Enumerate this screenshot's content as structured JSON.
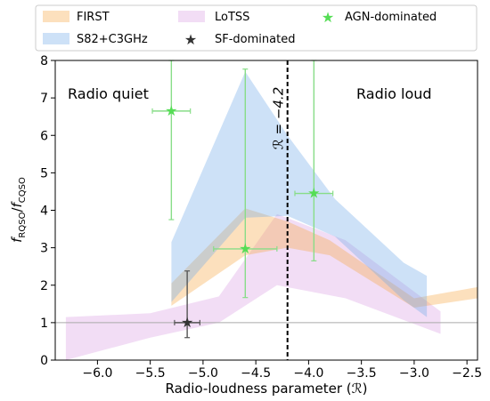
{
  "chart_data": {
    "type": "area",
    "title": "",
    "xlabel": "Radio-loudness parameter (ℛ)",
    "ylabel": "f RQSO / f CQSO",
    "ylabel_main": "f",
    "ylabel_sub1": "RQSO",
    "ylabel_sep": "/",
    "ylabel_main2": "f",
    "ylabel_sub2": "CQSO",
    "xlim": [
      -6.4,
      -2.4
    ],
    "ylim": [
      0,
      8
    ],
    "xticks": [
      -6.0,
      -5.5,
      -5.0,
      -4.5,
      -4.0,
      -3.5,
      -3.0,
      -2.5
    ],
    "xtick_labels": [
      "−6.0",
      "−5.5",
      "−5.0",
      "−4.5",
      "−4.0",
      "−3.5",
      "−3.0",
      "−2.5"
    ],
    "yticks": [
      0,
      1,
      2,
      3,
      4,
      5,
      6,
      7,
      8
    ],
    "ytick_labels": [
      "0",
      "1",
      "2",
      "3",
      "4",
      "5",
      "6",
      "7",
      "8"
    ],
    "grid": false,
    "legend_position": "top, above the axes",
    "reference_line_y": 1,
    "threshold": {
      "x": -4.2,
      "label": "ℛ = −4.2"
    },
    "region_labels": {
      "left": "Radio quiet",
      "right": "Radio loud"
    },
    "series": [
      {
        "name": "FIRST",
        "kind": "band",
        "color": "#f5a542",
        "x": [
          -5.3,
          -4.6,
          -4.2,
          -3.8,
          -3.0,
          -2.4
        ],
        "lower": [
          1.45,
          2.8,
          3.0,
          2.8,
          1.4,
          1.65
        ],
        "upper": [
          2.05,
          4.05,
          3.7,
          3.2,
          1.65,
          1.95
        ]
      },
      {
        "name": "S82+C3GHz",
        "kind": "band",
        "color": "#6fa8e8",
        "x": [
          -5.3,
          -4.6,
          -4.2,
          -3.75,
          -3.1,
          -2.88
        ],
        "lower": [
          1.55,
          3.8,
          3.85,
          3.3,
          1.6,
          1.15
        ],
        "upper": [
          3.15,
          7.7,
          6.0,
          4.3,
          2.6,
          2.25
        ]
      },
      {
        "name": "LoTSS",
        "kind": "band",
        "color": "#e2b4e8",
        "x": [
          -6.3,
          -5.5,
          -4.85,
          -4.3,
          -3.65,
          -2.75
        ],
        "lower": [
          0.0,
          0.6,
          1.0,
          2.0,
          1.65,
          0.7
        ],
        "upper": [
          1.15,
          1.25,
          1.7,
          3.9,
          3.2,
          1.3
        ]
      },
      {
        "name": "SF-dominated",
        "kind": "points",
        "color": "#333333",
        "marker": "star",
        "points": [
          {
            "x": -5.15,
            "y": 1.0,
            "xerr": 0.12,
            "yerr_low": 0.4,
            "yerr_high": 1.38
          }
        ]
      },
      {
        "name": "AGN-dominated",
        "kind": "points",
        "color": "#55dd55",
        "marker": "star",
        "points": [
          {
            "x": -5.3,
            "y": 6.65,
            "xerr": 0.18,
            "yerr_low": 2.9,
            "yerr_high": 1.35
          },
          {
            "x": -4.6,
            "y": 2.97,
            "xerr": 0.3,
            "yerr_low": 1.3,
            "yerr_high": 4.8
          },
          {
            "x": -3.95,
            "y": 4.45,
            "xerr": 0.18,
            "yerr_low": 1.8,
            "yerr_high": 3.55
          }
        ]
      }
    ],
    "legend": [
      {
        "label": "FIRST",
        "swatch": "band",
        "color": "#f5a542"
      },
      {
        "label": "LoTSS",
        "swatch": "band",
        "color": "#e2b4e8"
      },
      {
        "label": "AGN-dominated",
        "swatch": "star",
        "color": "#55dd55"
      },
      {
        "label": "S82+C3GHz",
        "swatch": "band",
        "color": "#6fa8e8"
      },
      {
        "label": "SF-dominated",
        "swatch": "star",
        "color": "#333333"
      }
    ]
  }
}
